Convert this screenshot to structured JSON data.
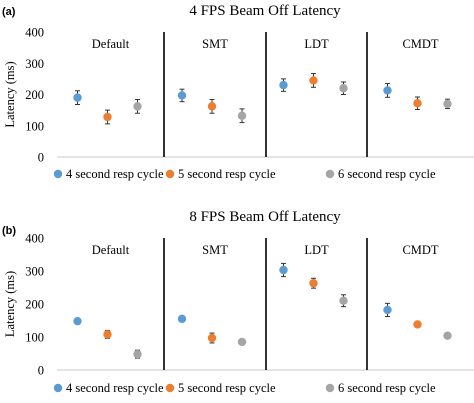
{
  "chart_data": [
    {
      "type": "scatter",
      "panel_tag": "(a)",
      "title": "4 FPS Beam Off Latency",
      "ylabel": "Latency (ms)",
      "ylim": [
        0,
        400
      ],
      "yticks": [
        0,
        100,
        200,
        300,
        400
      ],
      "categories": [
        "Default",
        "SMT",
        "LDT",
        "CMDT"
      ],
      "series": [
        {
          "name": "4 second resp cycle",
          "color": "#5b9bd5",
          "values": [
            190,
            197,
            230,
            213
          ],
          "errors": [
            22,
            20,
            20,
            22
          ]
        },
        {
          "name": "5 second resp cycle",
          "color": "#ed7d31",
          "values": [
            128,
            162,
            245,
            172
          ],
          "errors": [
            22,
            22,
            22,
            20
          ]
        },
        {
          "name": "6 second resp cycle",
          "color": "#a5a5a5",
          "values": [
            162,
            132,
            220,
            170
          ],
          "errors": [
            22,
            22,
            20,
            15
          ]
        }
      ]
    },
    {
      "type": "scatter",
      "panel_tag": "(b)",
      "title": "8 FPS Beam Off Latency",
      "ylabel": "Latency (ms)",
      "ylim": [
        0,
        400
      ],
      "yticks": [
        0,
        100,
        200,
        300,
        400
      ],
      "categories": [
        "Default",
        "SMT",
        "LDT",
        "CMDT"
      ],
      "series": [
        {
          "name": "4 second resp cycle",
          "color": "#5b9bd5",
          "values": [
            148,
            155,
            303,
            182
          ],
          "errors": [
            0,
            0,
            20,
            20
          ]
        },
        {
          "name": "5 second resp cycle",
          "color": "#ed7d31",
          "values": [
            108,
            97,
            263,
            138
          ],
          "errors": [
            12,
            15,
            15,
            0
          ]
        },
        {
          "name": "6 second resp cycle",
          "color": "#a5a5a5",
          "values": [
            48,
            85,
            210,
            104
          ],
          "errors": [
            12,
            0,
            18,
            8
          ]
        }
      ]
    }
  ]
}
